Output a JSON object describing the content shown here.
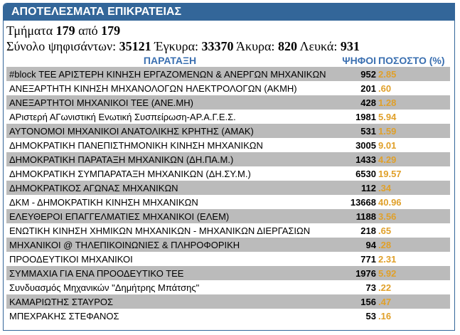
{
  "title": "ΑΠΟΤΕΛΕΣΜΑΤΑ ΕΠΙΚΡΑΤΕΙΑΣ",
  "summary": {
    "sections_label": "Τμήματα",
    "sections_done": "179",
    "of_label": "από",
    "sections_total": "179",
    "voters_label": "Σύνολο ψηφισάντων:",
    "voters": "35121",
    "valid_label": "Έγκυρα:",
    "valid": "33370",
    "invalid_label": "Άκυρα:",
    "invalid": "820",
    "blank_label": "Λευκά:",
    "blank": "931"
  },
  "columns": {
    "name": "ΠΑΡΑΤΑΞΗ",
    "votes": "ΨΗΦΟΙ",
    "pct": "ΠΟΣΟΣΤΟ (%)"
  },
  "colors": {
    "title_bg": "#336699",
    "row_alt": "#bbbbbb",
    "pct": "#e0a02a"
  },
  "rows": [
    {
      "name": "#block ΤΕΕ ΑΡΙΣΤΕΡΗ ΚΙΝΗΣΗ ΕΡΓΑΖΟΜΕΝΩΝ & ΑΝΕΡΓΩΝ ΜΗΧΑΝΙΚΩΝ",
      "votes": "952",
      "pct": "2.85"
    },
    {
      "name": "ΑΝΕΞΑΡΤΗΤΗ ΚΙΝΗΣΗ ΜΗΧΑΝΟΛΟΓΩΝ ΗΛΕΚΤΡΟΛΟΓΩΝ (ΑΚΜΗ)",
      "votes": "201",
      "pct": ".60"
    },
    {
      "name": "ΑΝΕΞΑΡΤΗΤΟΙ ΜΗΧΑΝΙΚΟΙ ΤΕΕ (ΑΝΕ.ΜΗ)",
      "votes": "428",
      "pct": "1.28"
    },
    {
      "name": "ΑΡιστερή ΑΓωνιστική Ενωτική Συσπείρωση-ΑΡ.Α.Γ.Ε.Σ.",
      "votes": "1981",
      "pct": "5.94"
    },
    {
      "name": "ΑΥΤΟΝΟΜΟΙ ΜΗΧΑΝΙΚΟΙ ΑΝΑΤΟΛΙΚΗΣ ΚΡΗΤΗΣ (ΑΜΑΚ)",
      "votes": "531",
      "pct": "1.59"
    },
    {
      "name": "ΔΗΜΟΚΡΑΤΙΚΗ ΠΑΝΕΠΙΣΤΗΜΟΝΙΚΗ ΚΙΝΗΣΗ ΜΗΧΑΝΙΚΩΝ",
      "votes": "3005",
      "pct": "9.01"
    },
    {
      "name": "ΔΗΜΟΚΡΑΤΙΚΗ ΠΑΡΑΤΑΞΗ ΜΗΧΑΝΙΚΩΝ (ΔΗ.ΠΑ.Μ.)",
      "votes": "1433",
      "pct": "4.29"
    },
    {
      "name": "ΔΗΜΟΚΡΑΤΙΚΗ ΣΥΜΠΑΡΑΤΑΞΗ ΜΗΧΑΝΙΚΩΝ (ΔΗ.ΣΥ.Μ.)",
      "votes": "6530",
      "pct": "19.57"
    },
    {
      "name": "ΔΗΜΟΚΡΑΤΙΚΟΣ ΑΓΩΝΑΣ ΜΗΧΑΝΙΚΩΝ",
      "votes": "112",
      "pct": ".34"
    },
    {
      "name": "ΔΚΜ - ΔΗΜΟΚΡΑΤΙΚΗ ΚΙΝΗΣΗ ΜΗΧΑΝΙΚΩΝ",
      "votes": "13668",
      "pct": "40.96"
    },
    {
      "name": "ΕΛΕΥΘΕΡΟΙ ΕΠΑΓΓΕΛΜΑΤΙΕΣ ΜΗΧΑΝΙΚΟΙ (ΕΛΕΜ)",
      "votes": "1188",
      "pct": "3.56"
    },
    {
      "name": "ΕΝΩΤΙΚΗ ΚΙΝΗΣΗ ΧΗΜΙΚΩΝ ΜΗΧΑΝΙΚΩΝ - ΜΗΧΑΝΙΚΩΝ ΔΙΕΡΓΑΣΙΩΝ",
      "votes": "218",
      "pct": ".65"
    },
    {
      "name": "ΜΗΧΑΝΙΚΟΙ @ ΤΗΛΕΠΙΚΟΙΝΩΝΙΕΣ & ΠΛΗΡΟΦΟΡΙΚΗ",
      "votes": "94",
      "pct": ".28"
    },
    {
      "name": "ΠΡΟΟΔΕΥΤΙΚΟΙ ΜΗΧΑΝΙΚΟΙ",
      "votes": "771",
      "pct": "2.31"
    },
    {
      "name": "ΣΥΜΜΑΧΙΑ ΓΙΑ ΕΝΑ ΠΡΟΟΔΕΥΤΙΚΟ ΤΕΕ",
      "votes": "1976",
      "pct": "5.92"
    },
    {
      "name": "Συνδυασμός Μηχανικών \"Δημήτρης Μπάτσης\"",
      "votes": "73",
      "pct": ".22"
    },
    {
      "name": "ΚΑΜΑΡΙΩΤΗΣ ΣΤΑΥΡΟΣ",
      "votes": "156",
      "pct": ".47"
    },
    {
      "name": "ΜΠΕΧΡΑΚΗΣ ΣΤΕΦΑΝΟΣ",
      "votes": "53",
      "pct": ".16"
    }
  ]
}
